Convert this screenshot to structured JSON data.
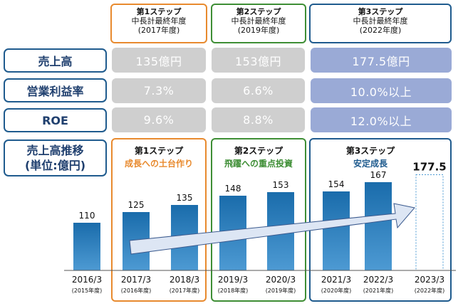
{
  "steps": [
    {
      "title": "第1ステップ",
      "line2": "中長計最終年度",
      "line3": "(2017年度)",
      "color": "#e88a2e",
      "chart_title": "第1ステップ",
      "chart_sub": "成長への土台作り",
      "sub_color": "#e88a2e"
    },
    {
      "title": "第2ステップ",
      "line2": "中長計最終年度",
      "line3": "(2019年度)",
      "color": "#3e8e35",
      "chart_title": "第2ステップ",
      "chart_sub": "飛躍への重点投資",
      "sub_color": "#3e8e35"
    },
    {
      "title": "第3ステップ",
      "line2": "中長計最終年度",
      "line3": "(2022年度)",
      "color": "#1f5b8e",
      "chart_title": "第3ステップ",
      "chart_sub": "安定成長",
      "sub_color": "#1f5b8e"
    }
  ],
  "rows": [
    {
      "label": "売上高",
      "values": [
        "135億円",
        "153億円",
        "177.5億円"
      ]
    },
    {
      "label": "営業利益率",
      "values": [
        "7.3%",
        "6.6%",
        "10.0%以上"
      ]
    },
    {
      "label": "ROE",
      "values": [
        "9.6%",
        "8.8%",
        "12.0%以上"
      ]
    }
  ],
  "chart_label_line1": "売上高推移",
  "chart_label_line2": "(単位:億円)",
  "colors": {
    "bar": "#1a6cab",
    "bar_light": "#4d9ad3",
    "arrow": "#dde6f4",
    "arrow_stroke": "#3b5a8e",
    "navy": "#1f5b8e"
  },
  "chart_data": {
    "type": "bar",
    "categories": [
      "2016/3",
      "2017/3",
      "2018/3",
      "2019/3",
      "2020/3",
      "2021/3",
      "2022/3",
      "2023/3"
    ],
    "category_sub": [
      "(2015年度)",
      "(2016年度)",
      "(2017年度)",
      "(2018年度)",
      "(2019年度)",
      "(2020年度)",
      "(2021年度)",
      "(2022年度)"
    ],
    "values": [
      110,
      125,
      135,
      148,
      153,
      154,
      167,
      177.5
    ],
    "labels": [
      "110",
      "125",
      "135",
      "148",
      "153",
      "154",
      "167",
      "177.5"
    ],
    "target_index": 7,
    "ylabel": "売上高推移 (単位:億円)"
  }
}
